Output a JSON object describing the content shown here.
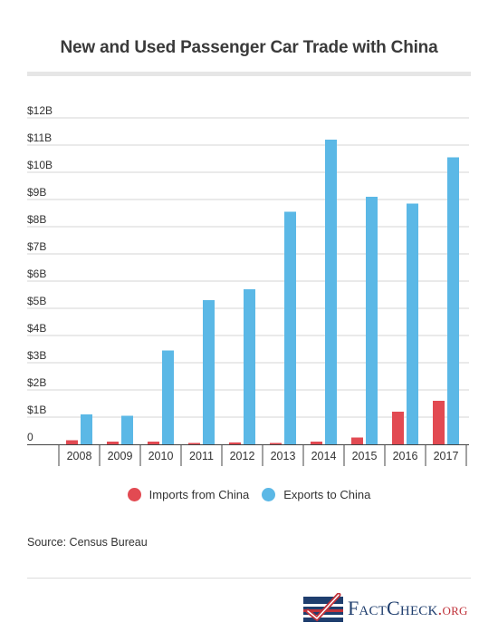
{
  "header": {
    "title": "New and Used Passenger Car Trade with China"
  },
  "chart_data": {
    "type": "bar",
    "categories": [
      "2008",
      "2009",
      "2010",
      "2011",
      "2012",
      "2013",
      "2014",
      "2015",
      "2016",
      "2017"
    ],
    "series": [
      {
        "name": "Imports from China",
        "color": "#e24a52",
        "values": [
          0.15,
          0.1,
          0.1,
          0.05,
          0.07,
          0.05,
          0.1,
          0.25,
          1.2,
          1.6
        ]
      },
      {
        "name": "Exports to China",
        "color": "#5bb8e6",
        "values": [
          1.1,
          1.05,
          3.45,
          5.3,
          5.7,
          8.55,
          11.2,
          9.1,
          8.85,
          10.55
        ]
      }
    ],
    "ylim": [
      0,
      12
    ],
    "y_ticks": [
      {
        "value": 0,
        "label": "0"
      },
      {
        "value": 1,
        "label": "$1B"
      },
      {
        "value": 2,
        "label": "$2B"
      },
      {
        "value": 3,
        "label": "$3B"
      },
      {
        "value": 4,
        "label": "$4B"
      },
      {
        "value": 5,
        "label": "$5B"
      },
      {
        "value": 6,
        "label": "$6B"
      },
      {
        "value": 7,
        "label": "$7B"
      },
      {
        "value": 8,
        "label": "$8B"
      },
      {
        "value": 9,
        "label": "$9B"
      },
      {
        "value": 10,
        "label": "$10B"
      },
      {
        "value": 11,
        "label": "$11B"
      },
      {
        "value": 12,
        "label": "$12B"
      }
    ],
    "grid": true,
    "legend_position": "bottom-center"
  },
  "legend": {
    "imports_label": "Imports from China",
    "exports_label": "Exports to China"
  },
  "footer": {
    "source": "Source: Census Bureau"
  },
  "logo": {
    "part1": "FactCheck",
    "part2": ".org"
  }
}
